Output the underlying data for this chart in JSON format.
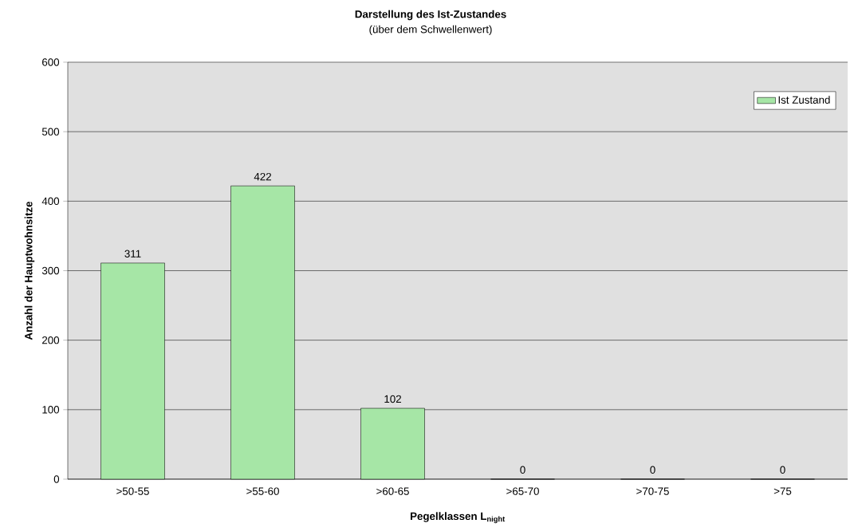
{
  "chart_data": {
    "type": "bar",
    "title": "Darstellung des Ist-Zustandes",
    "subtitle": "(über dem Schwellenwert)",
    "xlabel": "Pegelklassen L$_{night}$",
    "ylabel": "Anzahl der Hauptwohnsitze",
    "categories": [
      ">50-55",
      ">55-60",
      ">60-65",
      ">65-70",
      ">70-75",
      ">75"
    ],
    "series": [
      {
        "name": "Ist Zustand",
        "color": "#a6e6a6",
        "values": [
          311,
          422,
          102,
          0,
          0,
          0
        ]
      }
    ],
    "ylim": [
      0,
      600
    ],
    "yticks": [
      0,
      100,
      200,
      300,
      400,
      500,
      600
    ],
    "grid": "y",
    "legend": "top right",
    "data_labels": true
  }
}
